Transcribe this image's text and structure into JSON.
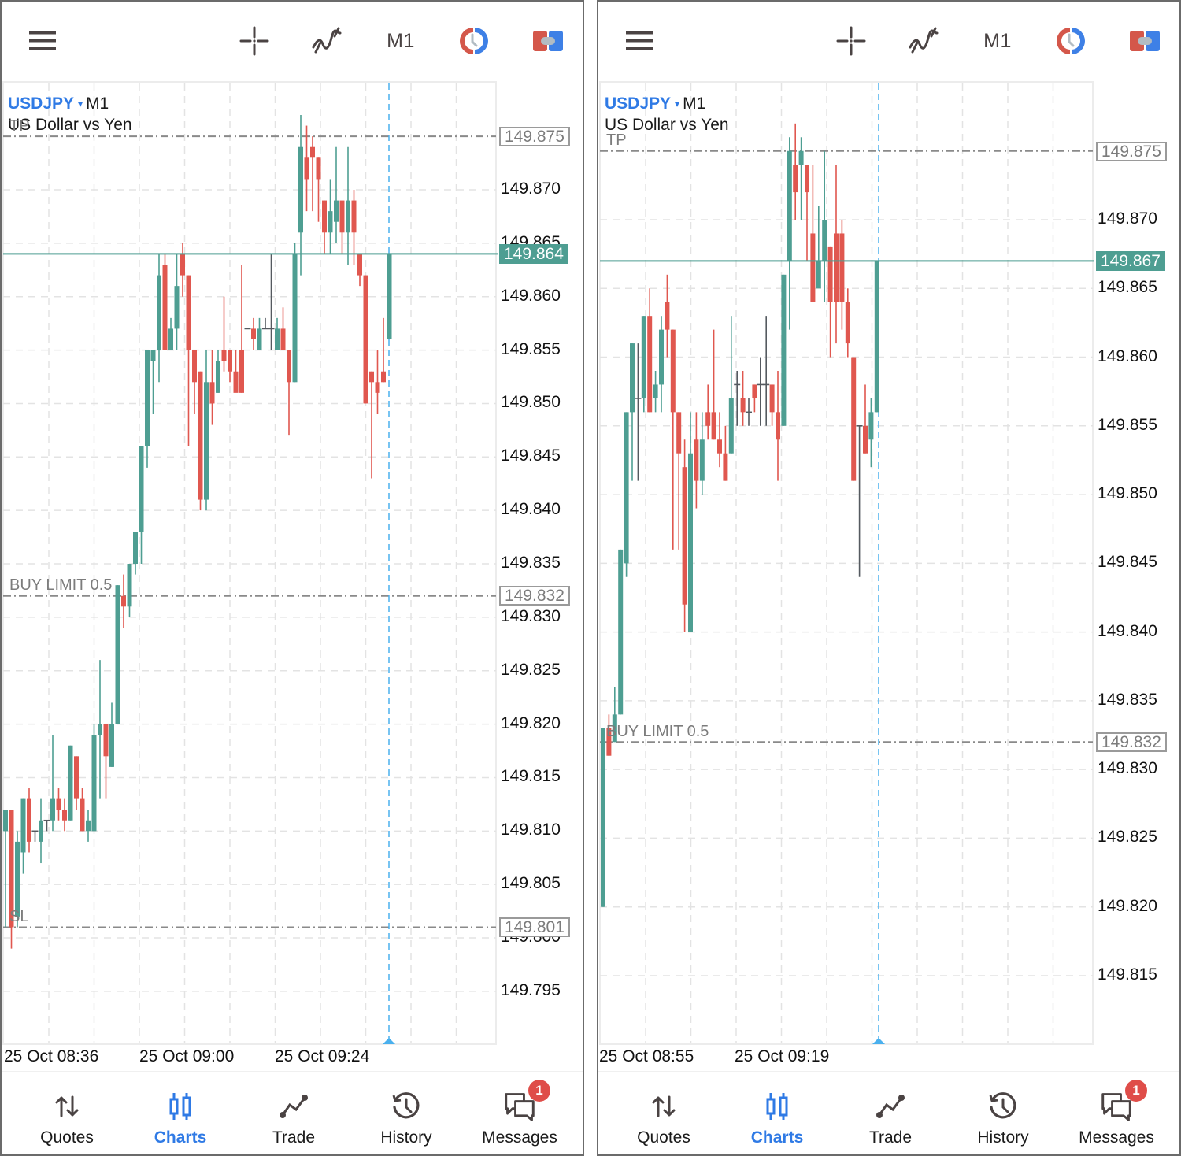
{
  "toolbar": {
    "menu_icon": "hamburger-menu-icon",
    "crosshair_icon": "crosshair-icon",
    "indicators_icon": "indicators-icon",
    "timeframe": "M1",
    "session_icon": "clock-session-icon",
    "trade_toggle_icon": "one-click-trading-icon"
  },
  "colors": {
    "bull": "#4e9e92",
    "bear": "#e0574f",
    "doji": "#555a60",
    "accent": "#2f7ae5",
    "grid": "#e3e3e3",
    "level_line": "#8a8a8a",
    "current_line": "#4e9e92",
    "vline": "#4ab0ee",
    "badge": "#df4d49"
  },
  "bottom_nav": {
    "items": [
      {
        "label": "Quotes",
        "icon": "quotes-arrows-icon"
      },
      {
        "label": "Charts",
        "icon": "charts-candles-icon",
        "active": true
      },
      {
        "label": "Trade",
        "icon": "trade-line-icon"
      },
      {
        "label": "History",
        "icon": "history-clock-icon"
      },
      {
        "label": "Messages",
        "icon": "messages-icon",
        "badge": "1"
      }
    ]
  },
  "panels": [
    {
      "symbol": "USDJPY",
      "caret": "▾",
      "timeframe": "M1",
      "description": "US Dollar vs Yen",
      "price_axis": [
        "149.870",
        "149.865",
        "149.860",
        "149.855",
        "149.850",
        "149.845",
        "149.840",
        "149.835",
        "149.830",
        "149.825",
        "149.820",
        "149.815",
        "149.810",
        "149.805",
        "149.800",
        "149.795"
      ],
      "tp": {
        "label": "TP",
        "price": "149.875"
      },
      "buy_limit": {
        "label": "BUY LIMIT 0.5",
        "price": "149.832"
      },
      "sl": {
        "label": "SL",
        "price": "149.801"
      },
      "current_price": "149.864",
      "time_labels": [
        "25 Oct 08:36",
        "25 Oct 09:00",
        "25 Oct 09:24"
      ]
    },
    {
      "symbol": "USDJPY",
      "caret": "▾",
      "timeframe": "M1",
      "description": "US Dollar vs Yen",
      "price_axis": [
        "149.870",
        "149.865",
        "149.860",
        "149.855",
        "149.850",
        "149.845",
        "149.840",
        "149.835",
        "149.830",
        "149.825",
        "149.820",
        "149.815"
      ],
      "tp": {
        "label": "TP",
        "price": "149.875"
      },
      "buy_limit": {
        "label": "BUY LIMIT 0.5",
        "price": "149.832"
      },
      "current_price": "149.867",
      "time_labels": [
        "25 Oct 08:55",
        "25 Oct 09:19"
      ]
    }
  ],
  "chart_data": [
    {
      "type": "candlestick",
      "title": "USDJPY M1 — US Dollar vs Yen",
      "ylim": [
        149.791,
        149.879
      ],
      "x_labels": [
        "25 Oct 08:36",
        "25 Oct 09:00",
        "25 Oct 09:24"
      ],
      "levels": {
        "tp": 149.875,
        "buy_limit": 149.832,
        "sl": 149.801,
        "current": 149.864
      },
      "candles_ohlc": [
        [
          149.81,
          149.812,
          149.801,
          149.812
        ],
        [
          149.812,
          149.812,
          149.799,
          149.801
        ],
        [
          149.802,
          149.81,
          149.801,
          149.809
        ],
        [
          149.808,
          149.813,
          149.806,
          149.813
        ],
        [
          149.813,
          149.814,
          149.808,
          149.809
        ],
        [
          149.81,
          149.81,
          149.809,
          149.81
        ],
        [
          149.809,
          149.813,
          149.807,
          149.811
        ],
        [
          149.811,
          149.811,
          149.81,
          149.811
        ],
        [
          149.811,
          149.819,
          149.81,
          149.813
        ],
        [
          149.813,
          149.814,
          149.811,
          149.812
        ],
        [
          149.812,
          149.813,
          149.81,
          149.811
        ],
        [
          149.811,
          149.818,
          149.811,
          149.818
        ],
        [
          149.817,
          149.817,
          149.812,
          149.813
        ],
        [
          149.813,
          149.814,
          149.81,
          149.81
        ],
        [
          149.81,
          149.812,
          149.809,
          149.811
        ],
        [
          149.81,
          149.82,
          149.81,
          149.819
        ],
        [
          149.819,
          149.826,
          149.813,
          149.82
        ],
        [
          149.82,
          149.82,
          149.813,
          149.817
        ],
        [
          149.816,
          149.822,
          149.816,
          149.82
        ],
        [
          149.82,
          149.833,
          149.82,
          149.833
        ],
        [
          149.832,
          149.834,
          149.829,
          149.831
        ],
        [
          149.831,
          149.835,
          149.83,
          149.835
        ],
        [
          149.835,
          149.838,
          149.834,
          149.838
        ],
        [
          149.838,
          149.846,
          149.835,
          149.846
        ],
        [
          149.846,
          149.855,
          149.844,
          149.855
        ],
        [
          149.854,
          149.855,
          149.849,
          149.855
        ],
        [
          149.855,
          149.864,
          149.852,
          149.862
        ],
        [
          149.863,
          149.864,
          149.855,
          149.855
        ],
        [
          149.855,
          149.858,
          149.855,
          149.857
        ],
        [
          149.857,
          149.864,
          149.855,
          149.861
        ],
        [
          149.864,
          149.865,
          149.86,
          149.862
        ],
        [
          149.862,
          149.862,
          149.846,
          149.855
        ],
        [
          149.855,
          149.855,
          149.849,
          149.852
        ],
        [
          149.853,
          149.853,
          149.84,
          149.841
        ],
        [
          149.841,
          149.855,
          149.84,
          149.852
        ],
        [
          149.852,
          149.855,
          149.848,
          149.85
        ],
        [
          149.851,
          149.855,
          149.851,
          149.854
        ],
        [
          149.855,
          149.86,
          149.853,
          149.854
        ],
        [
          149.855,
          149.855,
          149.852,
          149.853
        ],
        [
          149.853,
          149.855,
          149.852,
          149.851
        ],
        [
          149.855,
          149.863,
          149.851,
          149.851
        ],
        [
          149.857,
          149.857,
          149.857,
          149.857
        ],
        [
          149.857,
          149.858,
          149.855,
          149.856
        ],
        [
          149.855,
          149.858,
          149.855,
          149.857
        ],
        [
          149.857,
          149.858,
          149.857,
          149.857
        ],
        [
          149.857,
          149.864,
          149.855,
          149.857
        ],
        [
          149.855,
          149.858,
          149.855,
          149.857
        ],
        [
          149.857,
          149.859,
          149.856,
          149.855
        ],
        [
          149.855,
          149.855,
          149.847,
          149.852
        ],
        [
          149.852,
          149.865,
          149.852,
          149.864
        ],
        [
          149.866,
          149.877,
          149.862,
          149.874
        ],
        [
          149.873,
          149.876,
          149.868,
          149.871
        ],
        [
          149.874,
          149.875,
          149.868,
          149.873
        ],
        [
          149.873,
          149.873,
          149.867,
          149.871
        ],
        [
          149.869,
          149.869,
          149.864,
          149.866
        ],
        [
          149.866,
          149.871,
          149.864,
          149.868
        ],
        [
          149.867,
          149.874,
          149.865,
          149.869
        ],
        [
          149.869,
          149.868,
          149.864,
          149.866
        ],
        [
          149.866,
          149.874,
          149.863,
          149.869
        ],
        [
          149.869,
          149.87,
          149.863,
          149.866
        ],
        [
          149.864,
          149.864,
          149.861,
          149.862
        ],
        [
          149.862,
          149.862,
          149.85,
          149.85
        ],
        [
          149.853,
          149.853,
          149.843,
          149.852
        ],
        [
          149.852,
          149.855,
          149.849,
          149.851
        ],
        [
          149.853,
          149.858,
          149.852,
          149.852
        ],
        [
          149.856,
          149.864,
          149.856,
          149.864
        ]
      ]
    },
    {
      "type": "candlestick",
      "title": "USDJPY M1 — US Dollar vs Yen",
      "ylim": [
        149.811,
        149.88
      ],
      "x_labels": [
        "25 Oct 08:55",
        "25 Oct 09:19"
      ],
      "levels": {
        "tp": 149.875,
        "buy_limit": 149.832,
        "current": 149.867
      },
      "candles_ohlc": [
        [
          149.82,
          149.833,
          149.82,
          149.833
        ],
        [
          149.833,
          149.834,
          149.831,
          149.831
        ],
        [
          149.832,
          149.836,
          149.832,
          149.834
        ],
        [
          149.834,
          149.846,
          149.834,
          149.846
        ],
        [
          149.845,
          149.856,
          149.844,
          149.856
        ],
        [
          149.856,
          149.861,
          149.851,
          149.861
        ],
        [
          149.857,
          149.861,
          149.851,
          149.857
        ],
        [
          149.857,
          149.863,
          149.856,
          149.863
        ],
        [
          149.863,
          149.865,
          149.856,
          149.856
        ],
        [
          149.857,
          149.859,
          149.856,
          149.858
        ],
        [
          149.858,
          149.863,
          149.856,
          149.862
        ],
        [
          149.864,
          149.866,
          149.86,
          149.862
        ],
        [
          149.862,
          149.862,
          149.846,
          149.856
        ],
        [
          149.856,
          149.856,
          149.846,
          149.853
        ],
        [
          149.852,
          149.854,
          149.84,
          149.842
        ],
        [
          149.84,
          149.856,
          149.84,
          149.853
        ],
        [
          149.854,
          149.856,
          149.849,
          149.851
        ],
        [
          149.851,
          149.856,
          149.85,
          149.854
        ],
        [
          149.856,
          149.858,
          149.854,
          149.855
        ],
        [
          149.856,
          149.862,
          149.854,
          149.854
        ],
        [
          149.854,
          149.856,
          149.852,
          149.853
        ],
        [
          149.853,
          149.855,
          149.851,
          149.851
        ],
        [
          149.853,
          149.863,
          149.853,
          149.857
        ],
        [
          149.858,
          149.859,
          149.855,
          149.858
        ],
        [
          149.857,
          149.859,
          149.855,
          149.856
        ],
        [
          149.856,
          149.857,
          149.855,
          149.856
        ],
        [
          149.858,
          149.858,
          149.856,
          149.857
        ],
        [
          149.858,
          149.86,
          149.855,
          149.858
        ],
        [
          149.858,
          149.863,
          149.855,
          149.858
        ],
        [
          149.858,
          149.858,
          149.855,
          149.856
        ],
        [
          149.856,
          149.859,
          149.851,
          149.854
        ],
        [
          149.855,
          149.866,
          149.855,
          149.866
        ],
        [
          149.867,
          149.876,
          149.862,
          149.875
        ],
        [
          149.874,
          149.877,
          149.87,
          149.872
        ],
        [
          149.874,
          149.876,
          149.87,
          149.875
        ],
        [
          149.874,
          149.874,
          149.867,
          149.872
        ],
        [
          149.869,
          149.874,
          149.864,
          149.864
        ],
        [
          149.865,
          149.871,
          149.866,
          149.867
        ],
        [
          149.867,
          149.875,
          149.864,
          149.87
        ],
        [
          149.868,
          149.868,
          149.86,
          149.864
        ],
        [
          149.869,
          149.874,
          149.861,
          149.864
        ],
        [
          149.869,
          149.87,
          149.862,
          149.864
        ],
        [
          149.864,
          149.865,
          149.86,
          149.861
        ],
        [
          149.86,
          149.86,
          149.851,
          149.851
        ],
        [
          149.855,
          149.855,
          149.844,
          149.855
        ],
        [
          149.855,
          149.858,
          149.853,
          149.853
        ],
        [
          149.854,
          149.857,
          149.852,
          149.856
        ],
        [
          149.856,
          149.867,
          149.856,
          149.867
        ]
      ]
    }
  ]
}
